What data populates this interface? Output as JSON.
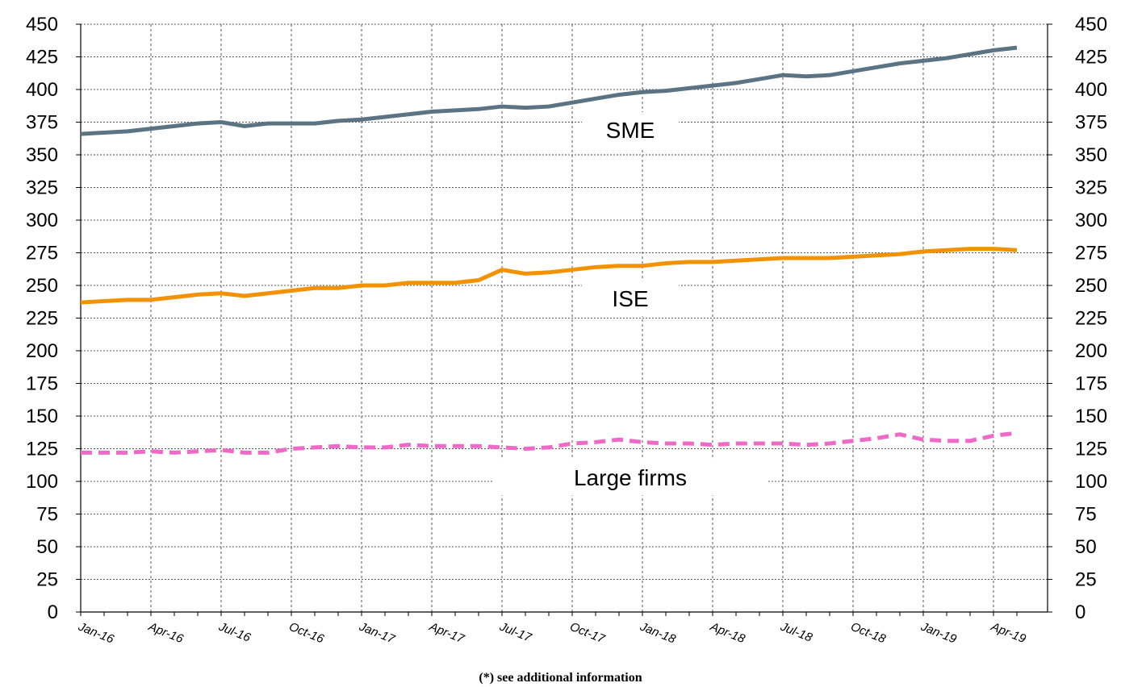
{
  "chart_data": {
    "type": "line",
    "x": [
      "Jan-16",
      "Feb-16",
      "Mar-16",
      "Apr-16",
      "May-16",
      "Jun-16",
      "Jul-16",
      "Aug-16",
      "Sep-16",
      "Oct-16",
      "Nov-16",
      "Dec-16",
      "Jan-17",
      "Feb-17",
      "Mar-17",
      "Apr-17",
      "May-17",
      "Jun-17",
      "Jul-17",
      "Aug-17",
      "Sep-17",
      "Oct-17",
      "Nov-17",
      "Dec-17",
      "Jan-18",
      "Feb-18",
      "Mar-18",
      "Apr-18",
      "May-18",
      "Jun-18",
      "Jul-18",
      "Aug-18",
      "Sep-18",
      "Oct-18",
      "Nov-18",
      "Dec-18",
      "Jan-19",
      "Feb-19",
      "Mar-19",
      "Apr-19",
      "May-19"
    ],
    "x_tick_labels": [
      "Jan-16",
      "Apr-16",
      "Jul-16",
      "Oct-16",
      "Jan-17",
      "Apr-17",
      "Jul-17",
      "Oct-17",
      "Jan-18",
      "Apr-18",
      "Jul-18",
      "Oct-18",
      "Jan-19",
      "Apr-19"
    ],
    "y_ticks": [
      0,
      25,
      50,
      75,
      100,
      125,
      150,
      175,
      200,
      225,
      250,
      275,
      300,
      325,
      350,
      375,
      400,
      425,
      450
    ],
    "ylim": [
      0,
      450
    ],
    "grid": true,
    "secondary_y_axis": true,
    "series": [
      {
        "name": "SME",
        "color": "#5b7484",
        "style": "solid",
        "label_at": {
          "x": "Dec-17",
          "y": 369
        },
        "values": [
          366,
          367,
          368,
          370,
          372,
          374,
          375,
          372,
          374,
          374,
          374,
          376,
          377,
          379,
          381,
          383,
          384,
          385,
          387,
          386,
          387,
          390,
          393,
          396,
          398,
          399,
          401,
          403,
          405,
          408,
          411,
          410,
          411,
          414,
          417,
          420,
          422,
          424,
          427,
          430,
          432
        ]
      },
      {
        "name": "ISE",
        "color": "#f39200",
        "style": "solid",
        "label_at": {
          "x": "Dec-17",
          "y": 240
        },
        "values": [
          237,
          238,
          239,
          239,
          241,
          243,
          244,
          242,
          244,
          246,
          248,
          248,
          250,
          250,
          252,
          252,
          252,
          254,
          262,
          259,
          260,
          262,
          264,
          265,
          265,
          267,
          268,
          268,
          269,
          270,
          271,
          271,
          271,
          272,
          273,
          274,
          276,
          277,
          278,
          278,
          277
        ]
      },
      {
        "name": "Large firms",
        "color": "#ee69c8",
        "style": "dashed",
        "label_at": {
          "x": "Dec-17",
          "y": 103
        },
        "values": [
          122,
          122,
          122,
          123,
          122,
          123,
          124,
          122,
          122,
          125,
          126,
          127,
          126,
          126,
          128,
          127,
          127,
          127,
          126,
          125,
          126,
          129,
          130,
          132,
          130,
          129,
          129,
          128,
          129,
          129,
          129,
          128,
          129,
          131,
          133,
          136,
          132,
          131,
          131,
          135,
          137
        ]
      }
    ]
  },
  "footnote": "(*) see additional information"
}
